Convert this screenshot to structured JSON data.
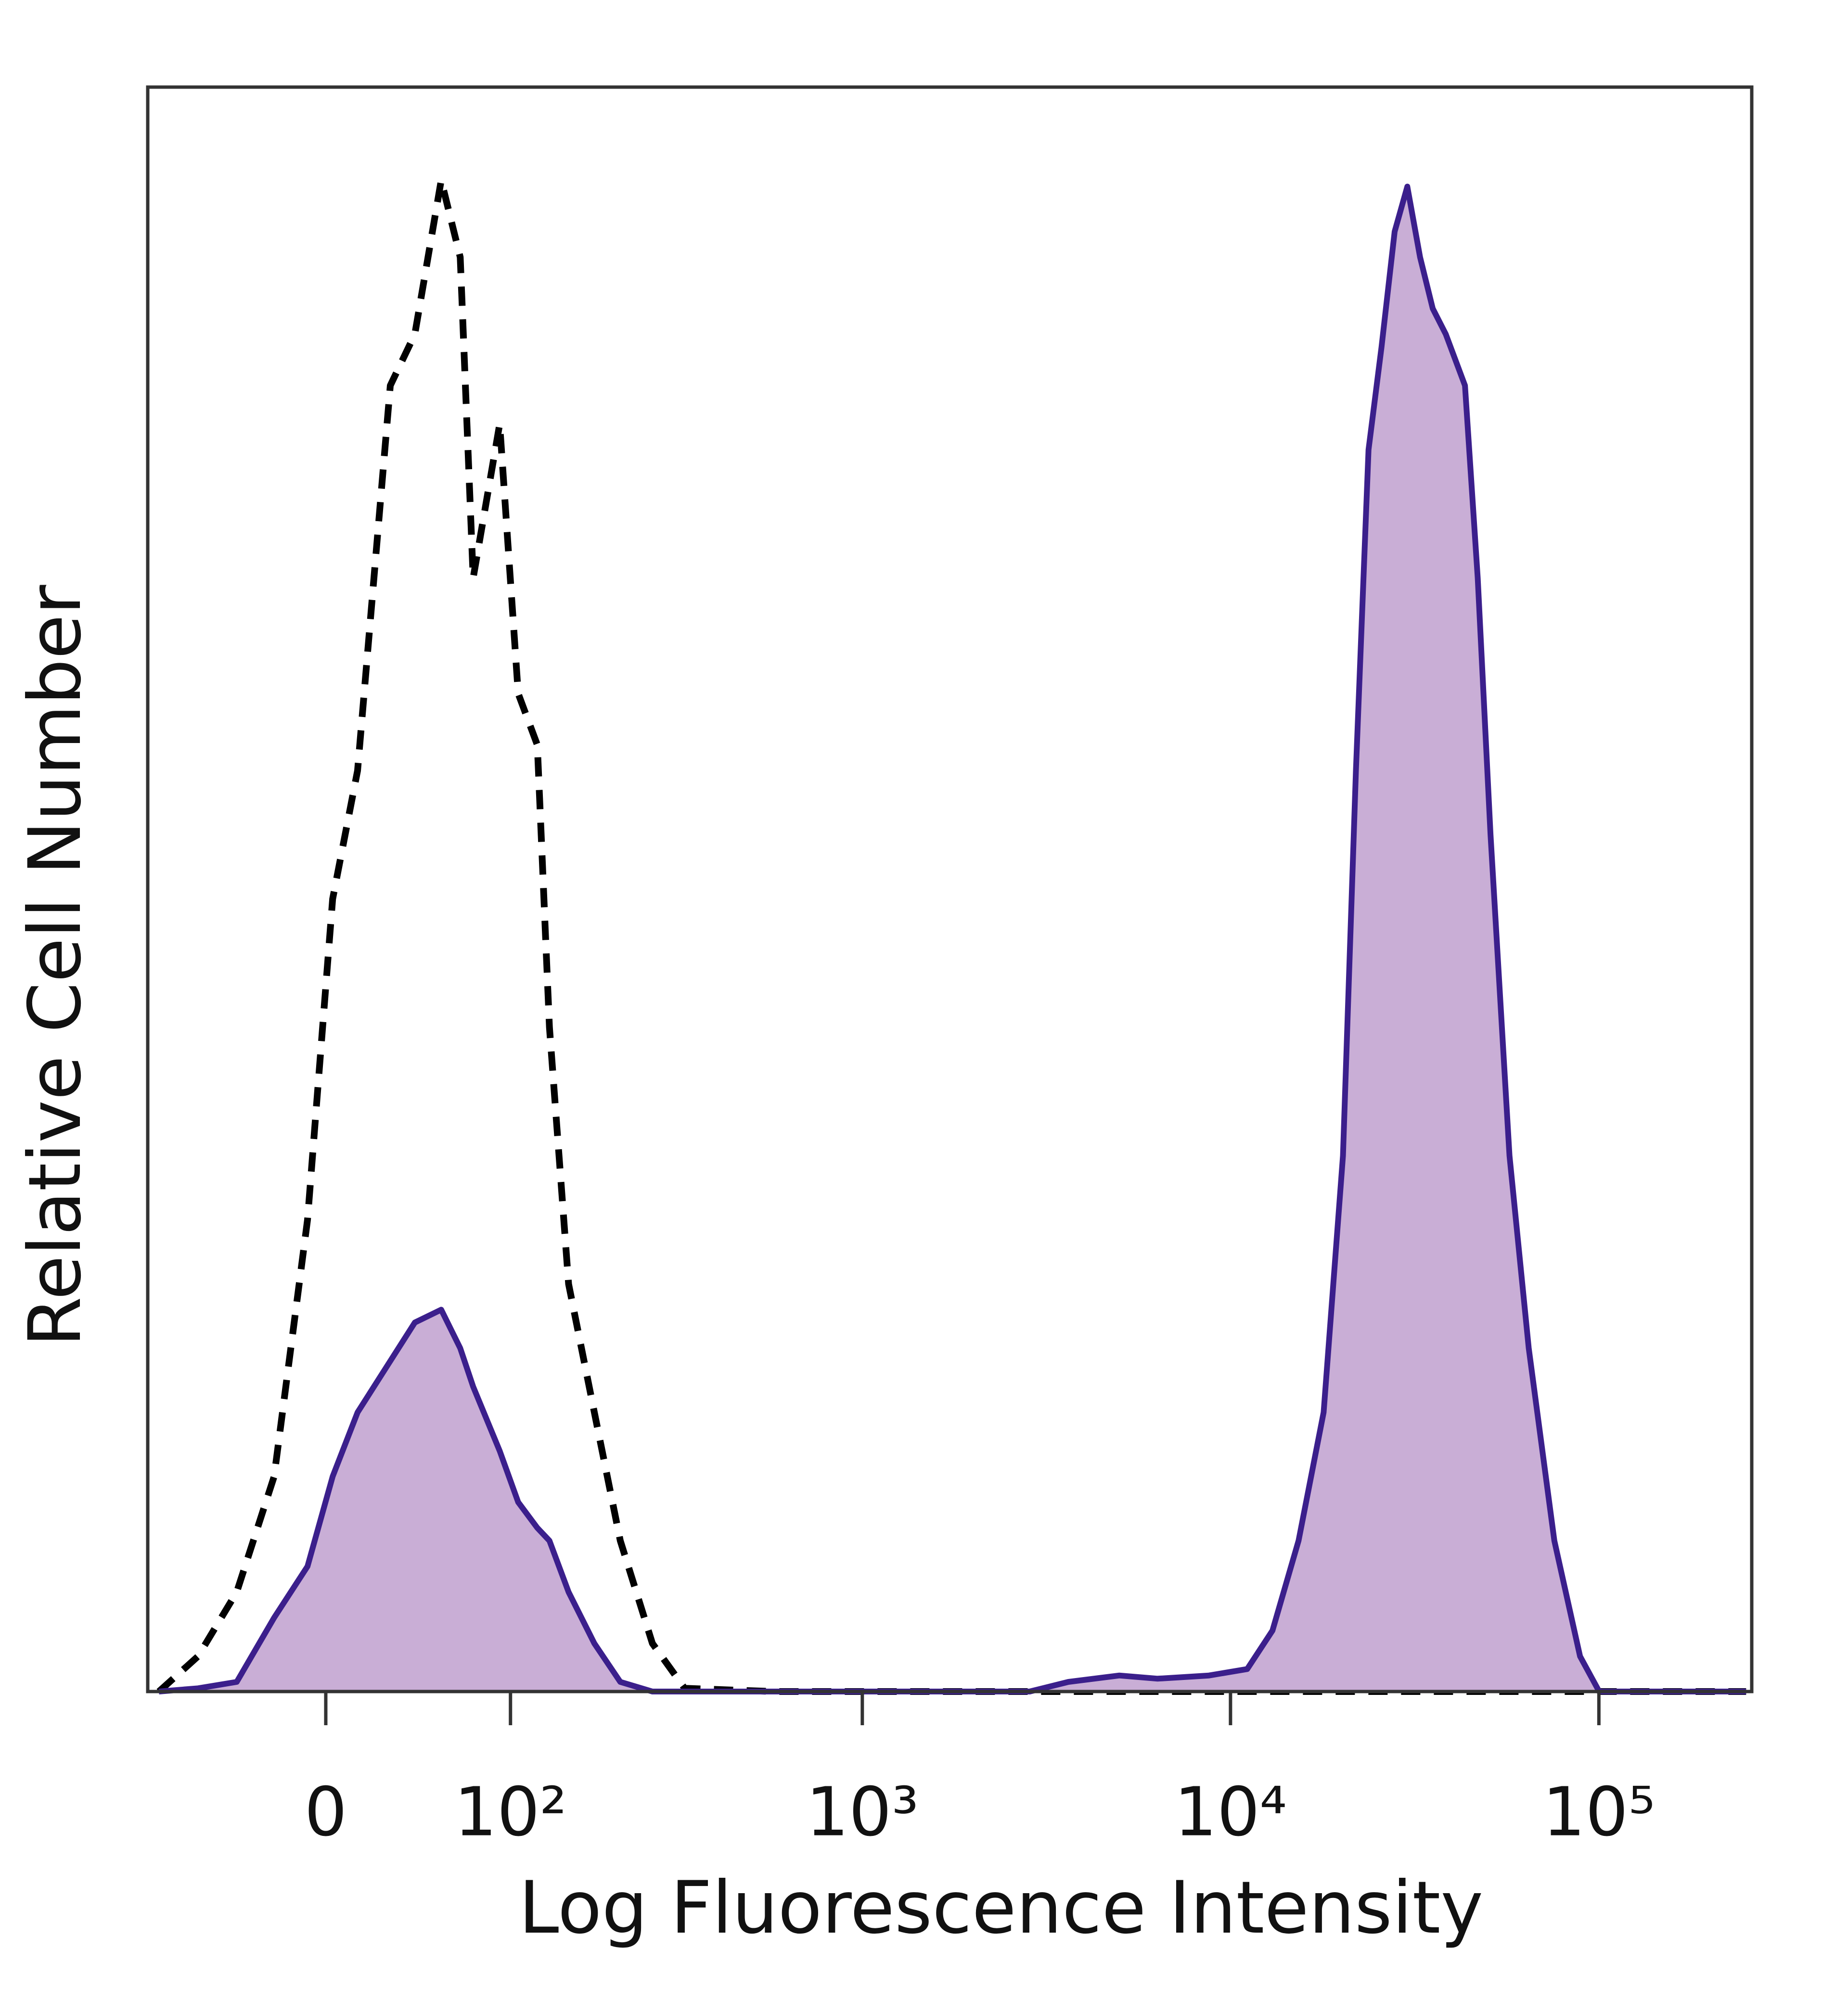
{
  "chart_data": {
    "type": "histogram-overlay",
    "xlabel": "Log Fluorescence Intensity",
    "ylabel": "Relative Cell Number",
    "xscale": "biexponential",
    "xlim": [
      -95,
      260000
    ],
    "ylim": [
      0,
      100
    ],
    "xticks": [
      0,
      {
        "value": 100,
        "label": "10²"
      },
      {
        "value": 1000,
        "label": "10³"
      },
      {
        "value": 10000,
        "label": "10⁴"
      },
      {
        "value": 100000,
        "label": "10⁵"
      }
    ],
    "x": [
      -87,
      -62,
      -41,
      -23,
      -8,
      3,
      14,
      29,
      41,
      55,
      66,
      74,
      92,
      106,
      122,
      133,
      152,
      181,
      215,
      265,
      326,
      573,
      1280,
      2850,
      3630,
      4990,
      6340,
      8740,
      11100,
      13000,
      15300,
      17900,
      20200,
      21900,
      23700,
      25700,
      27900,
      30200,
      32700,
      35400,
      38400,
      43300,
      46900,
      50800,
      57200,
      64500,
      75700,
      88900,
      100200,
      155600,
      251000
    ],
    "series": [
      {
        "color": "#000000",
        "style": "dashed",
        "filled": false,
        "values": [
          0,
          2.2,
          6.2,
          13.4,
          29.4,
          49.4,
          57.4,
          81.4,
          84.6,
          94.2,
          89.4,
          69.4,
          79,
          62.2,
          59,
          41.4,
          25.4,
          17.4,
          9.4,
          3,
          0.2,
          0,
          0,
          0,
          0,
          0,
          0,
          0,
          0,
          0,
          0,
          0,
          0,
          0,
          0,
          0,
          0,
          0,
          0,
          0,
          0,
          0,
          0,
          0,
          0,
          0,
          0,
          0,
          0,
          0,
          0
        ]
      },
      {
        "color": "#3b1f8c",
        "fill": "#c9aed6",
        "style": "solid",
        "filled": true,
        "values": [
          0,
          0.2,
          0.6,
          4.6,
          7.8,
          13.4,
          17.4,
          20.6,
          23,
          23.8,
          21.4,
          19,
          15,
          11.8,
          10.2,
          9.4,
          6.2,
          3,
          0.6,
          0,
          0,
          0,
          0,
          0,
          0.6,
          1,
          0.8,
          1,
          1.4,
          3.8,
          9.4,
          17.4,
          33.4,
          57.4,
          77.4,
          83.8,
          91,
          93.8,
          89.4,
          86.2,
          84.6,
          81.4,
          69.4,
          53.4,
          33.4,
          21.4,
          9.4,
          2.2,
          0,
          0,
          0
        ]
      }
    ]
  }
}
